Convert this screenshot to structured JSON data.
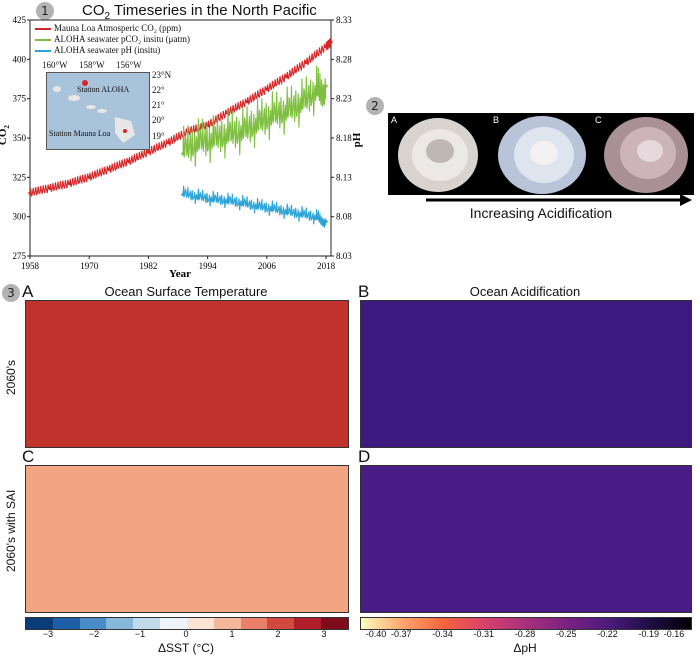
{
  "panel1": {
    "badge": "1",
    "title_main": "CO",
    "title_sub": "2",
    "title_rest": " Timeseries in the North Pacific",
    "ylabel_left_main": "CO",
    "ylabel_left_sub": "2",
    "ylabel_right": "pH",
    "xlabel": "Year",
    "left_ticks": [
      "425",
      "400",
      "375",
      "350",
      "325",
      "300",
      "275"
    ],
    "right_ticks": [
      "8.33",
      "8.28",
      "8.23",
      "8.18",
      "8.13",
      "8.08",
      "8.03"
    ],
    "x_ticks": [
      "1958",
      "1970",
      "1982",
      "1994",
      "2006",
      "2018"
    ],
    "legend": [
      {
        "label": "Mauna Loa Atmosperic CO₂ (ppm)",
        "color": "#d62728"
      },
      {
        "label": "ALOHA seawater pCO₂ insitu (μatm)",
        "color": "#7fbf3f"
      },
      {
        "label": "ALOHA seawater pH (insitu)",
        "color": "#2aa3d6"
      }
    ],
    "inset": {
      "lon_labels": [
        "160°W",
        "158°W",
        "156°W"
      ],
      "lat_labels": [
        "23°N",
        "22°",
        "21°",
        "20°",
        "19°"
      ],
      "station_aloha": "Station ALOHA",
      "station_mauna_loa": "Station Mauna Loa"
    }
  },
  "panel2": {
    "badge": "2",
    "letters": [
      "A",
      "B",
      "C"
    ],
    "caption": "Increasing Acidification"
  },
  "panel3": {
    "badge": "3",
    "letters": [
      "A",
      "B",
      "C",
      "D"
    ],
    "title_left": "Ocean Surface Temperature",
    "title_right": "Ocean Acidification",
    "row1": "2060's",
    "row2": "2060's with SAI",
    "sst_cbar": {
      "ticks": [
        "−3",
        "−2",
        "−1",
        "0",
        "1",
        "2",
        "3"
      ],
      "label": "ΔSST (°C)",
      "colors": [
        "#0b3c7a",
        "#1f5fa8",
        "#4a8cc8",
        "#86b8dc",
        "#c2dbec",
        "#eef3f7",
        "#fbe4d6",
        "#f6b89c",
        "#e9806a",
        "#d24a3f",
        "#b11e2a",
        "#7f0c1c"
      ]
    },
    "ph_cbar": {
      "ticks": [
        "-0.40",
        "-0.37",
        "-0.34",
        "-0.31",
        "-0.28",
        "-0.25",
        "-0.22",
        "-0.19",
        "-0.16"
      ],
      "label": "ΔpH"
    }
  },
  "chart_data": {
    "type": "line",
    "title": "CO₂ Timeseries in the North Pacific",
    "xlabel": "Year",
    "ylabel": "CO₂",
    "ylabel_right": "pH",
    "xlim": [
      1958,
      2019
    ],
    "ylim": [
      275,
      425
    ],
    "ylim_right": [
      8.03,
      8.33
    ],
    "legend_position": "top-left",
    "series": [
      {
        "name": "Mauna Loa Atmosperic CO₂ (ppm)",
        "axis": "left",
        "x": [
          1958,
          1962,
          1966,
          1970,
          1974,
          1978,
          1982,
          1986,
          1990,
          1994,
          1998,
          2002,
          2006,
          2010,
          2014,
          2018,
          2019
        ],
        "values": [
          315,
          318,
          321,
          325,
          330,
          335,
          341,
          347,
          354,
          358,
          366,
          373,
          381,
          389,
          398,
          408,
          411
        ]
      },
      {
        "name": "ALOHA seawater pCO₂ insitu (μatm)",
        "axis": "left",
        "x": [
          1989,
          1992,
          1995,
          1998,
          2001,
          2004,
          2007,
          2010,
          2013,
          2016,
          2018
        ],
        "values": [
          340,
          345,
          347,
          350,
          352,
          357,
          362,
          365,
          370,
          378,
          383
        ]
      },
      {
        "name": "ALOHA seawater pH (insitu)",
        "axis": "right",
        "x": [
          1989,
          1992,
          1995,
          1998,
          2001,
          2004,
          2007,
          2010,
          2013,
          2016,
          2018
        ],
        "values": [
          8.108,
          8.104,
          8.101,
          8.099,
          8.096,
          8.092,
          8.089,
          8.085,
          8.082,
          8.078,
          8.074
        ]
      }
    ]
  }
}
